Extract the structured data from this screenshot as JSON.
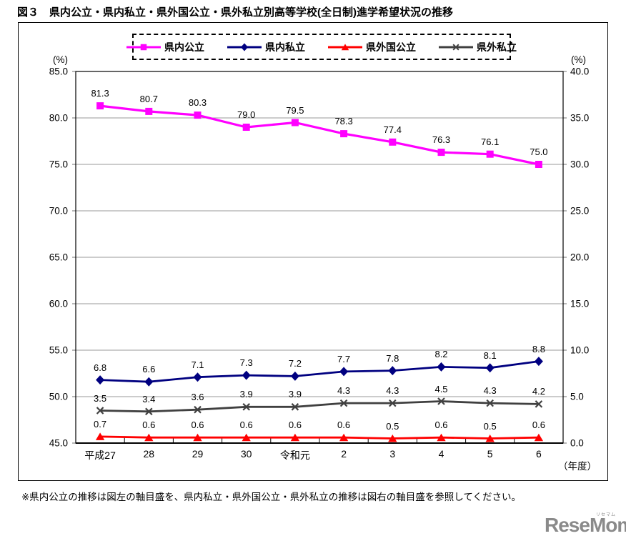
{
  "page": {
    "footnote": "※県内公立の推移は図左の軸目盛を、県内私立・県外国公立・県外私立の推移は図右の軸目盛を参照してください。",
    "logo": {
      "text": "ReseMom.",
      "ruby": "リセマム",
      "color": "#8a8a8a"
    }
  },
  "chart_data": {
    "type": "line",
    "title": "図３　県内公立・県内私立・県外国公立・県外私立別高等学校(全日制)進学希望状況の推移",
    "categories": [
      "平成27",
      "28",
      "29",
      "30",
      "令和元",
      "2",
      "3",
      "4",
      "5",
      "6"
    ],
    "x_unit_label": "（年度）",
    "left_axis": {
      "unit": "(%)",
      "min": 45.0,
      "max": 85.0,
      "step": 5.0,
      "ticks": [
        "85.0",
        "80.0",
        "75.0",
        "70.0",
        "65.0",
        "60.0",
        "55.0",
        "50.0",
        "45.0"
      ]
    },
    "right_axis": {
      "unit": "(%)",
      "min": 0.0,
      "max": 40.0,
      "step": 5.0,
      "ticks": [
        "40.0",
        "35.0",
        "30.0",
        "25.0",
        "20.0",
        "15.0",
        "10.0",
        "5.0",
        "0.0"
      ]
    },
    "grid": true,
    "legend_position": "top",
    "series": [
      {
        "name": "県内公立",
        "axis": "left",
        "color": "#ff00ff",
        "marker": "square",
        "values": [
          81.3,
          80.7,
          80.3,
          79.0,
          79.5,
          78.3,
          77.4,
          76.3,
          76.1,
          75.0
        ]
      },
      {
        "name": "県内私立",
        "axis": "right",
        "color": "#000080",
        "marker": "diamond",
        "values": [
          6.8,
          6.6,
          7.1,
          7.3,
          7.2,
          7.7,
          7.8,
          8.2,
          8.1,
          8.8
        ]
      },
      {
        "name": "県外国公立",
        "axis": "right",
        "color": "#ff0000",
        "marker": "triangle",
        "values": [
          0.7,
          0.6,
          0.6,
          0.6,
          0.6,
          0.6,
          0.5,
          0.6,
          0.5,
          0.6
        ]
      },
      {
        "name": "県外私立",
        "axis": "right",
        "color": "#404040",
        "marker": "x",
        "values": [
          3.5,
          3.4,
          3.6,
          3.9,
          3.9,
          4.3,
          4.3,
          4.5,
          4.3,
          4.2
        ]
      }
    ]
  }
}
